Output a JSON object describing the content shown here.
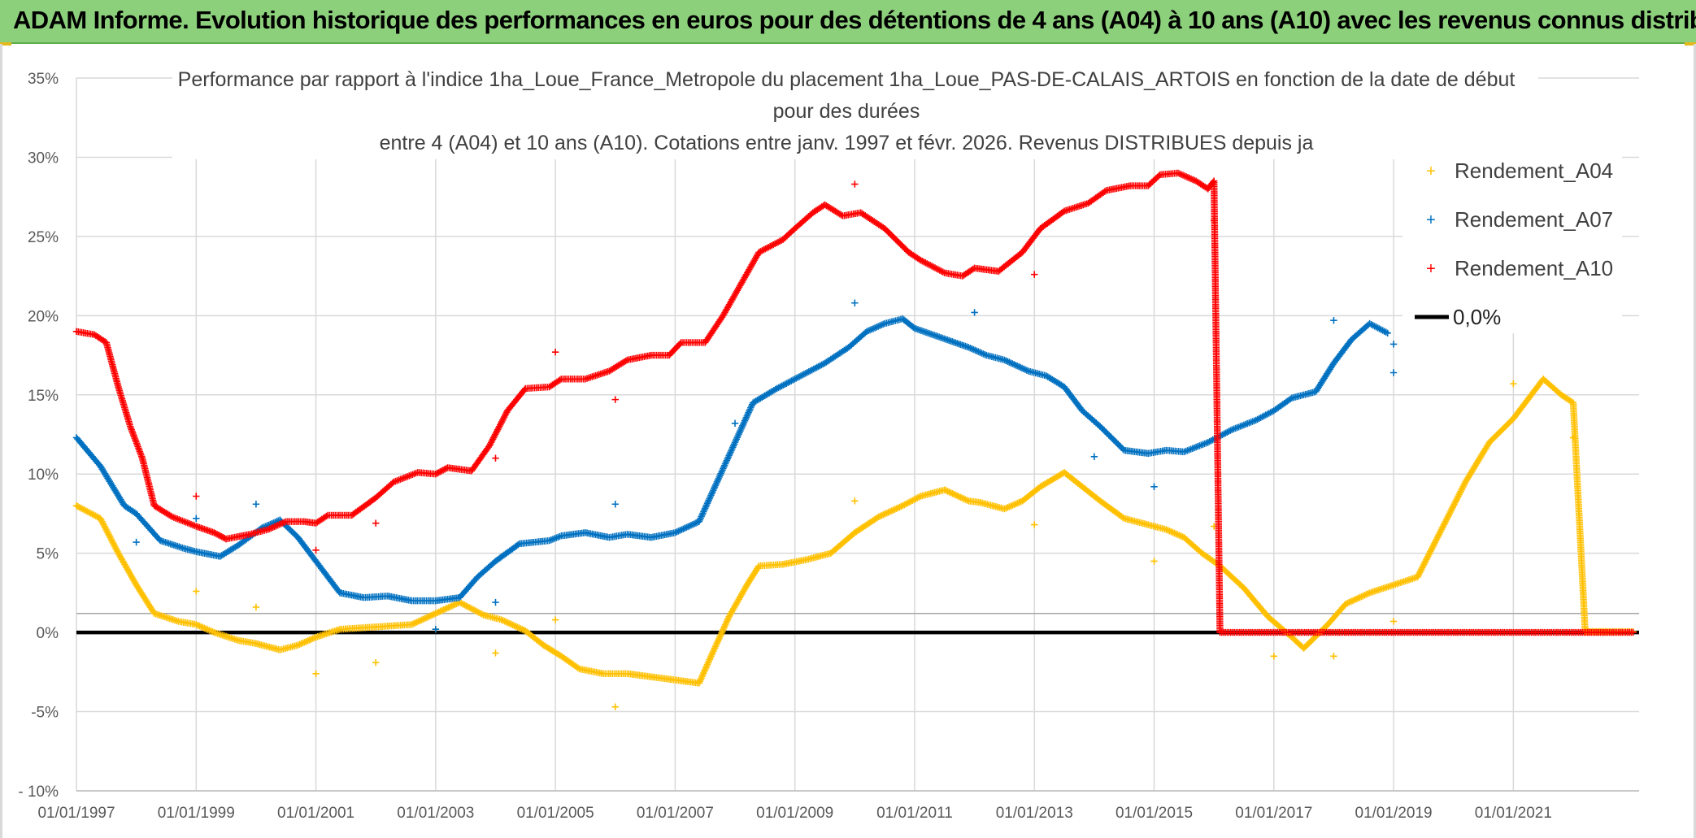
{
  "header": {
    "title": "ADAM Informe. Evolution historique des performances en euros pour des détentions de 4 ans (A04) à 10 ans (A10) avec les revenus connus distribués"
  },
  "colors": {
    "header_bg": "#8dd07c",
    "a04": "#ffc000",
    "a07": "#0070c0",
    "a10": "#ff0000",
    "zero": "#000000",
    "grid": "#d9d9d9"
  },
  "chart_data": {
    "type": "scatter",
    "title_lines": [
      "Performance par rapport à l'indice 1ha_Loue_France_Metropole  du placement 1ha_Loue_PAS-DE-CALAIS_ARTOIS en fonction de la date de début",
      "pour des durées",
      "entre 4 (A04) et 10 ans (A10). Cotations entre janv. 1997 et févr. 2026. Revenus DISTRIBUES depuis ja"
    ],
    "xlabel": "",
    "ylabel": "",
    "xlim": [
      1997.0,
      2023.1
    ],
    "ylim": [
      -10,
      35
    ],
    "x_ticks": [
      {
        "value": 1997,
        "label": "01/01/1997"
      },
      {
        "value": 1999,
        "label": "01/01/1999"
      },
      {
        "value": 2001,
        "label": "01/01/2001"
      },
      {
        "value": 2003,
        "label": "01/01/2003"
      },
      {
        "value": 2005,
        "label": "01/01/2005"
      },
      {
        "value": 2007,
        "label": "01/01/2007"
      },
      {
        "value": 2009,
        "label": "01/01/2009"
      },
      {
        "value": 2011,
        "label": "01/01/2011"
      },
      {
        "value": 2013,
        "label": "01/01/2013"
      },
      {
        "value": 2015,
        "label": "01/01/2015"
      },
      {
        "value": 2017,
        "label": "01/01/2017"
      },
      {
        "value": 2019,
        "label": "01/01/2019"
      },
      {
        "value": 2021,
        "label": "01/01/2021"
      }
    ],
    "y_ticks": [
      {
        "value": 35,
        "label": "35%"
      },
      {
        "value": 30,
        "label": "30%"
      },
      {
        "value": 25,
        "label": "25%"
      },
      {
        "value": 20,
        "label": "20%"
      },
      {
        "value": 15,
        "label": "15%"
      },
      {
        "value": 10,
        "label": "10%"
      },
      {
        "value": 5,
        "label": "5%"
      },
      {
        "value": 0,
        "label": "0%"
      },
      {
        "value": -5,
        "label": "-5%"
      },
      {
        "value": -10,
        "label": "- 10%"
      }
    ],
    "legend_position": "right",
    "legend": [
      {
        "label": "Rendement_A04",
        "series": "a04"
      },
      {
        "label": "Rendement_A07",
        "series": "a07"
      },
      {
        "label": "Rendement_A10",
        "series": "a10"
      },
      {
        "label": "0,0%",
        "series": "zero"
      }
    ],
    "zero_line": {
      "value": 0,
      "label": "0,0%"
    },
    "series": [
      {
        "name": "Rendement_A04",
        "key": "a04",
        "marker": "+",
        "points": [
          [
            1997.0,
            8.0
          ],
          [
            1997.4,
            7.2
          ],
          [
            1997.7,
            5.0
          ],
          [
            1998.0,
            3.0
          ],
          [
            1998.3,
            1.2
          ],
          [
            1998.7,
            0.7
          ],
          [
            1999.0,
            0.5
          ],
          [
            1999.3,
            0.0
          ],
          [
            1999.7,
            -0.5
          ],
          [
            2000.0,
            -0.7
          ],
          [
            2000.4,
            -1.1
          ],
          [
            2000.7,
            -0.8
          ],
          [
            2001.0,
            -0.3
          ],
          [
            2001.4,
            0.2
          ],
          [
            2001.8,
            0.3
          ],
          [
            2002.2,
            0.4
          ],
          [
            2002.6,
            0.5
          ],
          [
            2003.0,
            1.2
          ],
          [
            2003.4,
            1.9
          ],
          [
            2003.8,
            1.1
          ],
          [
            2004.1,
            0.8
          ],
          [
            2004.5,
            0.1
          ],
          [
            2004.8,
            -0.8
          ],
          [
            2005.1,
            -1.5
          ],
          [
            2005.4,
            -2.3
          ],
          [
            2005.8,
            -2.6
          ],
          [
            2006.2,
            -2.6
          ],
          [
            2006.6,
            -2.8
          ],
          [
            2007.0,
            -3.0
          ],
          [
            2007.4,
            -3.2
          ],
          [
            2007.6,
            -1.5
          ],
          [
            2007.9,
            1.0
          ],
          [
            2008.2,
            3.0
          ],
          [
            2008.4,
            4.2
          ],
          [
            2008.8,
            4.3
          ],
          [
            2009.2,
            4.6
          ],
          [
            2009.6,
            5.0
          ],
          [
            2010.0,
            6.3
          ],
          [
            2010.4,
            7.3
          ],
          [
            2010.8,
            8.0
          ],
          [
            2011.1,
            8.6
          ],
          [
            2011.5,
            9.0
          ],
          [
            2011.9,
            8.3
          ],
          [
            2012.1,
            8.2
          ],
          [
            2012.5,
            7.8
          ],
          [
            2012.8,
            8.3
          ],
          [
            2013.1,
            9.2
          ],
          [
            2013.5,
            10.1
          ],
          [
            2013.8,
            9.2
          ],
          [
            2014.1,
            8.3
          ],
          [
            2014.5,
            7.2
          ],
          [
            2014.9,
            6.8
          ],
          [
            2015.2,
            6.5
          ],
          [
            2015.5,
            6.0
          ],
          [
            2015.8,
            5.0
          ],
          [
            2016.1,
            4.2
          ],
          [
            2016.5,
            2.8
          ],
          [
            2016.9,
            1.0
          ],
          [
            2017.3,
            -0.3
          ],
          [
            2017.5,
            -1.0
          ],
          [
            2017.9,
            0.5
          ],
          [
            2018.2,
            1.8
          ],
          [
            2018.6,
            2.5
          ],
          [
            2019.0,
            3.0
          ],
          [
            2019.4,
            3.5
          ],
          [
            2019.8,
            6.5
          ],
          [
            2020.2,
            9.5
          ],
          [
            2020.6,
            12.0
          ],
          [
            2021.0,
            13.5
          ],
          [
            2021.3,
            15.0
          ],
          [
            2021.5,
            16.0
          ],
          [
            2021.8,
            15.0
          ],
          [
            2022.0,
            14.5
          ],
          [
            2022.2,
            0.05
          ],
          [
            2022.6,
            0.05
          ],
          [
            2023.0,
            0.05
          ]
        ],
        "outliers": [
          [
            1999.0,
            2.6
          ],
          [
            2000.0,
            1.6
          ],
          [
            2001.0,
            -2.6
          ],
          [
            2002.0,
            -1.9
          ],
          [
            2003.0,
            0.2
          ],
          [
            2004.0,
            -1.3
          ],
          [
            2005.0,
            0.8
          ],
          [
            2006.0,
            -4.7
          ],
          [
            2010.0,
            8.3
          ],
          [
            2013.0,
            6.8
          ],
          [
            2015.0,
            4.5
          ],
          [
            2016.0,
            6.7
          ],
          [
            2017.0,
            -1.5
          ],
          [
            2018.0,
            -1.5
          ],
          [
            2019.0,
            0.7
          ],
          [
            2021.0,
            15.7
          ],
          [
            2022.0,
            12.3
          ]
        ]
      },
      {
        "name": "Rendement_A07",
        "key": "a07",
        "marker": "+",
        "points": [
          [
            1997.0,
            12.3
          ],
          [
            1997.4,
            10.5
          ],
          [
            1997.8,
            8.0
          ],
          [
            1998.0,
            7.5
          ],
          [
            1998.4,
            5.8
          ],
          [
            1998.8,
            5.3
          ],
          [
            1999.0,
            5.1
          ],
          [
            1999.4,
            4.8
          ],
          [
            1999.7,
            5.5
          ],
          [
            2000.1,
            6.6
          ],
          [
            2000.4,
            7.1
          ],
          [
            2000.7,
            6.0
          ],
          [
            2001.0,
            4.5
          ],
          [
            2001.4,
            2.5
          ],
          [
            2001.8,
            2.2
          ],
          [
            2002.2,
            2.3
          ],
          [
            2002.6,
            2.0
          ],
          [
            2003.0,
            2.0
          ],
          [
            2003.4,
            2.2
          ],
          [
            2003.7,
            3.5
          ],
          [
            2004.0,
            4.5
          ],
          [
            2004.4,
            5.6
          ],
          [
            2004.9,
            5.8
          ],
          [
            2005.1,
            6.1
          ],
          [
            2005.5,
            6.3
          ],
          [
            2005.9,
            6.0
          ],
          [
            2006.2,
            6.2
          ],
          [
            2006.6,
            6.0
          ],
          [
            2007.0,
            6.3
          ],
          [
            2007.4,
            7.0
          ],
          [
            2007.7,
            9.5
          ],
          [
            2008.0,
            12.0
          ],
          [
            2008.3,
            14.5
          ],
          [
            2008.7,
            15.4
          ],
          [
            2009.1,
            16.2
          ],
          [
            2009.5,
            17.0
          ],
          [
            2009.9,
            18.0
          ],
          [
            2010.2,
            19.0
          ],
          [
            2010.5,
            19.5
          ],
          [
            2010.8,
            19.8
          ],
          [
            2011.0,
            19.2
          ],
          [
            2011.3,
            18.8
          ],
          [
            2011.6,
            18.4
          ],
          [
            2011.9,
            18.0
          ],
          [
            2012.2,
            17.5
          ],
          [
            2012.5,
            17.2
          ],
          [
            2012.9,
            16.5
          ],
          [
            2013.2,
            16.2
          ],
          [
            2013.5,
            15.5
          ],
          [
            2013.8,
            14.0
          ],
          [
            2014.1,
            13.0
          ],
          [
            2014.5,
            11.5
          ],
          [
            2014.9,
            11.3
          ],
          [
            2015.2,
            11.5
          ],
          [
            2015.5,
            11.4
          ],
          [
            2015.9,
            12.0
          ],
          [
            2016.3,
            12.8
          ],
          [
            2016.7,
            13.4
          ],
          [
            2017.0,
            14.0
          ],
          [
            2017.3,
            14.8
          ],
          [
            2017.7,
            15.2
          ],
          [
            2018.0,
            17.0
          ],
          [
            2018.3,
            18.5
          ],
          [
            2018.6,
            19.5
          ],
          [
            2018.9,
            18.9
          ]
        ],
        "outliers": [
          [
            1998.0,
            5.7
          ],
          [
            1999.0,
            7.2
          ],
          [
            2000.0,
            8.1
          ],
          [
            2003.0,
            0.2
          ],
          [
            2004.0,
            1.9
          ],
          [
            2006.0,
            8.1
          ],
          [
            2008.0,
            13.2
          ],
          [
            2010.0,
            20.8
          ],
          [
            2012.0,
            20.2
          ],
          [
            2014.0,
            11.1
          ],
          [
            2015.0,
            9.2
          ],
          [
            2018.0,
            19.7
          ],
          [
            2019.0,
            18.2
          ],
          [
            2019.0,
            16.4
          ]
        ]
      },
      {
        "name": "Rendement_A10",
        "key": "a10",
        "marker": "+",
        "points": [
          [
            1997.0,
            19.0
          ],
          [
            1997.3,
            18.8
          ],
          [
            1997.5,
            18.3
          ],
          [
            1997.7,
            15.5
          ],
          [
            1997.9,
            13.0
          ],
          [
            1998.1,
            11.0
          ],
          [
            1998.3,
            8.0
          ],
          [
            1998.6,
            7.3
          ],
          [
            1999.0,
            6.7
          ],
          [
            1999.3,
            6.3
          ],
          [
            1999.5,
            5.9
          ],
          [
            1999.9,
            6.2
          ],
          [
            2000.2,
            6.5
          ],
          [
            2000.5,
            7.0
          ],
          [
            2000.8,
            7.0
          ],
          [
            2001.0,
            6.9
          ],
          [
            2001.2,
            7.4
          ],
          [
            2001.6,
            7.4
          ],
          [
            2002.0,
            8.5
          ],
          [
            2002.3,
            9.5
          ],
          [
            2002.7,
            10.1
          ],
          [
            2003.0,
            10.0
          ],
          [
            2003.2,
            10.4
          ],
          [
            2003.6,
            10.2
          ],
          [
            2003.9,
            11.8
          ],
          [
            2004.2,
            14.0
          ],
          [
            2004.5,
            15.4
          ],
          [
            2004.9,
            15.5
          ],
          [
            2005.1,
            16.0
          ],
          [
            2005.5,
            16.0
          ],
          [
            2005.9,
            16.5
          ],
          [
            2006.2,
            17.2
          ],
          [
            2006.6,
            17.5
          ],
          [
            2006.9,
            17.5
          ],
          [
            2007.1,
            18.3
          ],
          [
            2007.5,
            18.3
          ],
          [
            2007.8,
            20.0
          ],
          [
            2008.1,
            22.0
          ],
          [
            2008.4,
            24.0
          ],
          [
            2008.8,
            24.8
          ],
          [
            2009.0,
            25.5
          ],
          [
            2009.3,
            26.5
          ],
          [
            2009.5,
            27.0
          ],
          [
            2009.8,
            26.3
          ],
          [
            2010.1,
            26.5
          ],
          [
            2010.5,
            25.5
          ],
          [
            2010.9,
            24.0
          ],
          [
            2011.1,
            23.5
          ],
          [
            2011.5,
            22.7
          ],
          [
            2011.8,
            22.5
          ],
          [
            2012.0,
            23.0
          ],
          [
            2012.4,
            22.8
          ],
          [
            2012.8,
            24.0
          ],
          [
            2013.1,
            25.5
          ],
          [
            2013.5,
            26.6
          ],
          [
            2013.9,
            27.1
          ],
          [
            2014.2,
            27.9
          ],
          [
            2014.6,
            28.2
          ],
          [
            2014.9,
            28.2
          ],
          [
            2015.1,
            28.9
          ],
          [
            2015.4,
            29.0
          ],
          [
            2015.7,
            28.5
          ],
          [
            2015.9,
            28.0
          ],
          [
            2016.0,
            28.5
          ],
          [
            2016.1,
            0.0
          ],
          [
            2017.0,
            0.0
          ],
          [
            2018.0,
            0.0
          ],
          [
            2019.0,
            0.0
          ],
          [
            2020.0,
            0.0
          ],
          [
            2021.0,
            0.0
          ],
          [
            2022.0,
            0.0
          ],
          [
            2023.0,
            0.0
          ]
        ],
        "outliers": [
          [
            1999.0,
            8.6
          ],
          [
            2001.0,
            5.2
          ],
          [
            2002.0,
            6.9
          ],
          [
            2004.0,
            11.0
          ],
          [
            2005.0,
            17.7
          ],
          [
            2006.0,
            14.7
          ],
          [
            2010.0,
            28.3
          ],
          [
            2013.0,
            22.6
          ],
          [
            2016.0,
            26.0
          ]
        ]
      }
    ]
  }
}
